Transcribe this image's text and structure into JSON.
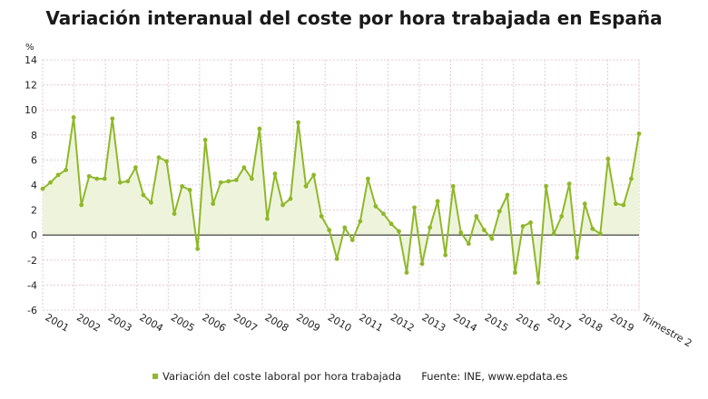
{
  "title": "Variación interanual del coste por hora trabajada en España",
  "legend_label": "Variación del coste laboral por hora trabajada",
  "source": "Fuente: INE, www.epdata.es",
  "colors": {
    "line": "#8fb82a",
    "fill": "#eef4dc",
    "grid": "#e6c8d3",
    "zero": "#333333"
  },
  "chart_data": {
    "type": "area",
    "title": "Variación interanual del coste por hora trabajada en España",
    "ylabel": "%",
    "ylim": [
      -6,
      14
    ],
    "yticks": [
      -6,
      -4,
      -2,
      0,
      2,
      4,
      6,
      8,
      10,
      12,
      14
    ],
    "xlabels": [
      "2001",
      "2002",
      "2003",
      "2004",
      "2005",
      "2006",
      "2007",
      "2008",
      "2009",
      "2010",
      "2011",
      "2012",
      "2013",
      "2014",
      "2015",
      "2016",
      "2017",
      "2018",
      "2019",
      "Trimestre 2"
    ],
    "grid": true,
    "legend": "bottom",
    "series": [
      {
        "name": "Variación del coste laboral por hora trabajada",
        "values": [
          3.7,
          4.2,
          4.8,
          5.2,
          9.4,
          2.4,
          4.7,
          4.5,
          4.5,
          9.3,
          4.2,
          4.3,
          5.4,
          3.2,
          2.6,
          6.2,
          5.9,
          1.7,
          3.9,
          3.6,
          -1.1,
          7.6,
          2.5,
          4.2,
          4.3,
          4.4,
          5.4,
          4.5,
          8.5,
          1.3,
          4.9,
          2.4,
          2.9,
          9.0,
          3.9,
          4.8,
          1.5,
          0.4,
          -1.9,
          0.6,
          -0.4,
          1.1,
          4.5,
          2.3,
          1.7,
          0.9,
          0.3,
          -3.0,
          2.2,
          -2.3,
          0.6,
          2.7,
          -1.6,
          3.9,
          0.2,
          -0.7,
          1.5,
          0.4,
          -0.3,
          1.9,
          3.2,
          -3.0,
          0.7,
          1.0,
          -3.8,
          3.9,
          0.1,
          1.5,
          4.1,
          -1.8,
          2.5,
          0.5,
          0.1,
          6.1,
          2.5,
          2.4,
          4.5,
          8.1
        ]
      }
    ]
  }
}
